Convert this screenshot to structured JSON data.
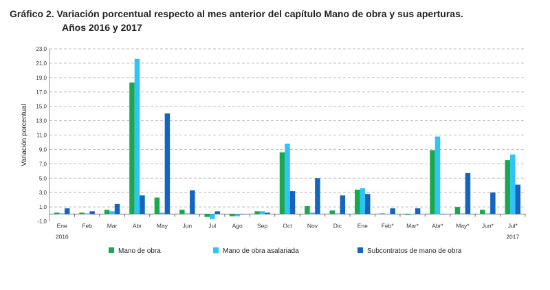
{
  "chart_data": {
    "type": "bar",
    "title": "Gráfico 2. Variación porcentual respecto al mes anterior del capítulo Mano de obra y sus aperturas.",
    "subtitle": "Años 2016 y 2017",
    "xlabel": "",
    "ylabel": "Variación porcentual",
    "ylim": [
      -1.0,
      23.0
    ],
    "yticks": [
      "-1,0",
      "1,0",
      "3,0",
      "5,0",
      "7,0",
      "9,0",
      "11,0",
      "13,0",
      "15,0",
      "17,0",
      "19,0",
      "21,0",
      "23,0"
    ],
    "grid": true,
    "legend_position": "bottom",
    "categories": [
      "Ene",
      "Feb",
      "Mar",
      "Abr",
      "May",
      "Jun",
      "Jul",
      "Ago",
      "Sep",
      "Oct",
      "Nov",
      "Dic",
      "Ene",
      "Feb*",
      "Mar*",
      "Abr*",
      "May*",
      "Jun*",
      "Jul*"
    ],
    "year_labels": [
      {
        "label": "2016",
        "category_index": 0
      },
      {
        "label": "2017",
        "category_index": 18
      }
    ],
    "series": [
      {
        "name": "Mano de obra",
        "color": "#1aa84f",
        "values": [
          0.2,
          0.2,
          0.6,
          18.3,
          2.3,
          0.6,
          -0.4,
          -0.3,
          0.4,
          8.6,
          1.1,
          0.5,
          3.4,
          0.1,
          -0.1,
          8.9,
          1.0,
          0.6,
          7.5
        ]
      },
      {
        "name": "Mano de obra asalariada",
        "color": "#2ec4f5",
        "values": [
          0.1,
          0.1,
          0.4,
          21.6,
          0.2,
          0.1,
          -0.7,
          -0.3,
          0.4,
          9.8,
          0.2,
          0.1,
          3.6,
          0.0,
          0.0,
          10.8,
          0.1,
          0.1,
          8.3
        ]
      },
      {
        "name": "Subcontratos de mano de obra",
        "color": "#1565c0",
        "values": [
          0.8,
          0.4,
          1.4,
          2.6,
          14.0,
          3.3,
          0.4,
          0.0,
          0.2,
          3.2,
          5.0,
          2.6,
          2.8,
          0.8,
          0.8,
          0.0,
          5.7,
          3.0,
          4.1
        ]
      }
    ]
  }
}
